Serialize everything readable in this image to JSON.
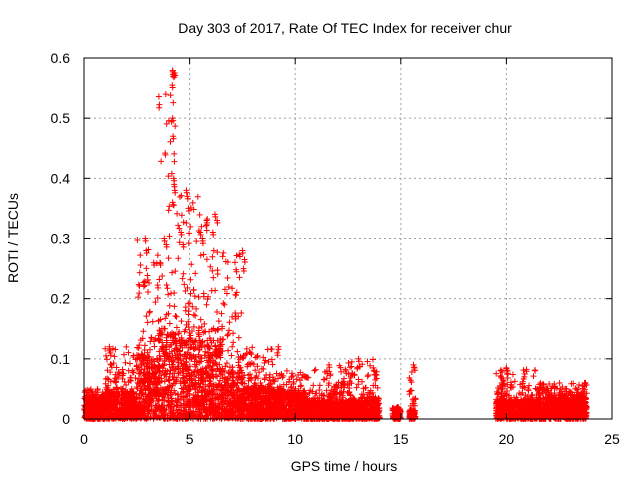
{
  "chart_data": {
    "type": "scatter",
    "title": "Day 303 of 2017, Rate Of TEC Index for receiver chur",
    "xlabel": "GPS time / hours",
    "ylabel": "ROTI / TECUs",
    "xlim": [
      0,
      25
    ],
    "ylim": [
      0,
      0.6
    ],
    "x_ticks": [
      "0",
      "5",
      "10",
      "15",
      "20",
      "25"
    ],
    "y_ticks": [
      "0",
      "0.1",
      "0.2",
      "0.3",
      "0.4",
      "0.5",
      "0.6"
    ],
    "grid": true,
    "marker": "+",
    "color": "#ff0000",
    "clusters": [
      {
        "x_range": [
          0.0,
          1.0
        ],
        "y_base": [
          0.0,
          0.035
        ],
        "y_max": 0.05
      },
      {
        "x_range": [
          1.0,
          2.5
        ],
        "y_base": [
          0.0,
          0.045
        ],
        "y_max": 0.12
      },
      {
        "x_range": [
          2.5,
          3.5
        ],
        "y_base": [
          0.0,
          0.1
        ],
        "y_max": 0.3
      },
      {
        "x_range": [
          3.5,
          4.5
        ],
        "y_base": [
          0.0,
          0.14
        ],
        "y_max": 0.58
      },
      {
        "x_range": [
          4.5,
          5.5
        ],
        "y_base": [
          0.0,
          0.13
        ],
        "y_max": 0.38
      },
      {
        "x_range": [
          5.5,
          6.5
        ],
        "y_base": [
          0.0,
          0.12
        ],
        "y_max": 0.34
      },
      {
        "x_range": [
          6.5,
          7.5
        ],
        "y_base": [
          0.0,
          0.08
        ],
        "y_max": 0.28
      },
      {
        "x_range": [
          7.5,
          9.0
        ],
        "y_base": [
          0.0,
          0.05
        ],
        "y_max": 0.12
      },
      {
        "x_range": [
          9.0,
          10.5
        ],
        "y_base": [
          0.0,
          0.04
        ],
        "y_max": 0.08
      },
      {
        "x_range": [
          10.5,
          12.5
        ],
        "y_base": [
          0.0,
          0.03
        ],
        "y_max": 0.09
      },
      {
        "x_range": [
          12.5,
          14.0
        ],
        "y_base": [
          0.0,
          0.03
        ],
        "y_max": 0.1
      },
      {
        "x_range": [
          14.6,
          15.0
        ],
        "y_base": [
          0.0,
          0.015
        ],
        "y_max": 0.02
      },
      {
        "x_range": [
          15.4,
          15.7
        ],
        "y_base": [
          0.0,
          0.015
        ],
        "y_max": 0.09
      },
      {
        "x_range": [
          19.5,
          21.5
        ],
        "y_base": [
          0.0,
          0.03
        ],
        "y_max": 0.085
      },
      {
        "x_range": [
          21.5,
          23.8
        ],
        "y_base": [
          0.0,
          0.035
        ],
        "y_max": 0.06
      }
    ],
    "highlights": [
      {
        "x": 4.2,
        "y": 0.577
      },
      {
        "x": 4.25,
        "y": 0.572
      },
      {
        "x": 4.3,
        "y": 0.575
      },
      {
        "x": 4.18,
        "y": 0.555
      },
      {
        "x": 4.2,
        "y": 0.5
      },
      {
        "x": 4.22,
        "y": 0.47
      },
      {
        "x": 4.25,
        "y": 0.4
      },
      {
        "x": 4.3,
        "y": 0.38
      },
      {
        "x": 4.27,
        "y": 0.39
      },
      {
        "x": 4.2,
        "y": 0.36
      },
      {
        "x": 4.85,
        "y": 0.38
      },
      {
        "x": 4.9,
        "y": 0.37
      },
      {
        "x": 4.95,
        "y": 0.35
      },
      {
        "x": 3.8,
        "y": 0.3
      },
      {
        "x": 3.9,
        "y": 0.29
      },
      {
        "x": 3.6,
        "y": 0.26
      },
      {
        "x": 2.9,
        "y": 0.3
      },
      {
        "x": 2.95,
        "y": 0.28
      },
      {
        "x": 3.3,
        "y": 0.26
      },
      {
        "x": 6.2,
        "y": 0.34
      },
      {
        "x": 6.3,
        "y": 0.33
      },
      {
        "x": 5.8,
        "y": 0.33
      },
      {
        "x": 6.1,
        "y": 0.31
      },
      {
        "x": 5.5,
        "y": 0.31
      },
      {
        "x": 5.6,
        "y": 0.3
      },
      {
        "x": 7.5,
        "y": 0.28
      },
      {
        "x": 7.6,
        "y": 0.265
      },
      {
        "x": 7.55,
        "y": 0.25
      },
      {
        "x": 4.6,
        "y": 0.31
      },
      {
        "x": 4.7,
        "y": 0.29
      },
      {
        "x": 1.2,
        "y": 0.12
      },
      {
        "x": 1.25,
        "y": 0.11
      },
      {
        "x": 1.3,
        "y": 0.09
      },
      {
        "x": 13.0,
        "y": 0.1
      },
      {
        "x": 13.7,
        "y": 0.085
      },
      {
        "x": 15.6,
        "y": 0.09
      },
      {
        "x": 15.65,
        "y": 0.085
      },
      {
        "x": 20.0,
        "y": 0.085
      },
      {
        "x": 20.05,
        "y": 0.08
      },
      {
        "x": 19.55,
        "y": 0.045
      },
      {
        "x": 23.7,
        "y": 0.06
      },
      {
        "x": 23.6,
        "y": 0.055
      },
      {
        "x": 9.2,
        "y": 0.12
      },
      {
        "x": 9.15,
        "y": 0.11
      },
      {
        "x": 11.6,
        "y": 0.09
      },
      {
        "x": 12.4,
        "y": 0.08
      },
      {
        "x": 14.85,
        "y": 0.02
      },
      {
        "x": 15.6,
        "y": 0.03
      }
    ]
  }
}
